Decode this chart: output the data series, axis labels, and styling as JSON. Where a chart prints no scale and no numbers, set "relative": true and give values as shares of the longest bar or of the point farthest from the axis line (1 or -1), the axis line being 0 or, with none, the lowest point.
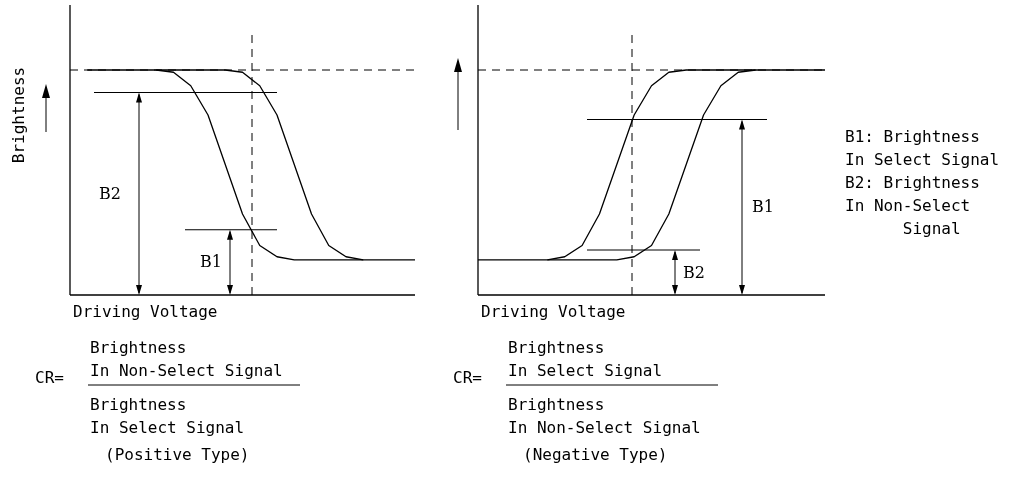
{
  "chart_data": [
    {
      "type": "line",
      "relative": true,
      "xlabel": "Driving Voltage",
      "ylabel": "Brightness",
      "categories": [
        null,
        null,
        null,
        null,
        null,
        null,
        null,
        null,
        null,
        null,
        null,
        null,
        null,
        null,
        null,
        null,
        null,
        null,
        null,
        null,
        null
      ],
      "series": [
        {
          "color": "#000000",
          "values": [
            null,
            1,
            1,
            1,
            1,
            1,
            0.99,
            0.93,
            0.8,
            0.58,
            0.36,
            0.22,
            0.17,
            0.156,
            0.156,
            0.156,
            0.156,
            0.156,
            null,
            null,
            null
          ]
        },
        {
          "color": "#000000",
          "values": [
            null,
            null,
            null,
            null,
            null,
            1,
            1,
            1,
            1,
            1,
            0.99,
            0.93,
            0.8,
            0.58,
            0.36,
            0.22,
            0.17,
            0.156,
            0.156,
            0.156,
            0.156
          ]
        }
      ],
      "ref_lines": [
        {
          "axis": "y",
          "value": 1,
          "line_style": "dashed"
        },
        {
          "axis": "y",
          "value": 0.9,
          "line_style": "solid"
        },
        {
          "axis": "y",
          "value": 0.29,
          "line_style": "solid"
        }
      ],
      "grid": false,
      "annotations": [
        "B2",
        "B1",
        "CR=",
        "Brightness\nIn Non-Select Signal",
        "Brightness\nIn Select Signal",
        "(Positive Type)"
      ]
    },
    {
      "type": "line",
      "relative": true,
      "xlabel": "Driving Voltage",
      "categories": [
        null,
        null,
        null,
        null,
        null,
        null,
        null,
        null,
        null,
        null,
        null,
        null,
        null,
        null,
        null,
        null,
        null,
        null,
        null,
        null,
        null
      ],
      "series": [
        {
          "color": "#000000",
          "values": [
            0.156,
            0.156,
            0.156,
            0.156,
            0.156,
            0.17,
            0.22,
            0.36,
            0.58,
            0.8,
            0.93,
            0.99,
            1,
            1,
            1,
            1,
            1,
            null,
            null,
            null,
            null
          ]
        },
        {
          "color": "#000000",
          "values": [
            null,
            null,
            null,
            null,
            0.156,
            0.156,
            0.156,
            0.156,
            0.156,
            0.17,
            0.22,
            0.36,
            0.58,
            0.8,
            0.93,
            0.99,
            1,
            1,
            1,
            1,
            1
          ]
        }
      ],
      "ref_lines": [
        {
          "axis": "y",
          "value": 1,
          "line_style": "dashed"
        },
        {
          "axis": "y",
          "value": 0.78,
          "line_style": "solid"
        },
        {
          "axis": "y",
          "value": 0.2,
          "line_style": "solid"
        }
      ],
      "grid": false,
      "annotations": [
        "B1",
        "B2",
        "CR=",
        "Brightness\nIn Select Signal",
        "Brightness\nIn Non-Select Signal",
        "(Negative Type)",
        "B1: Brightness\nIn Select Signal\nB2: Brightness\nIn Non-Select\n      Signal"
      ]
    }
  ]
}
